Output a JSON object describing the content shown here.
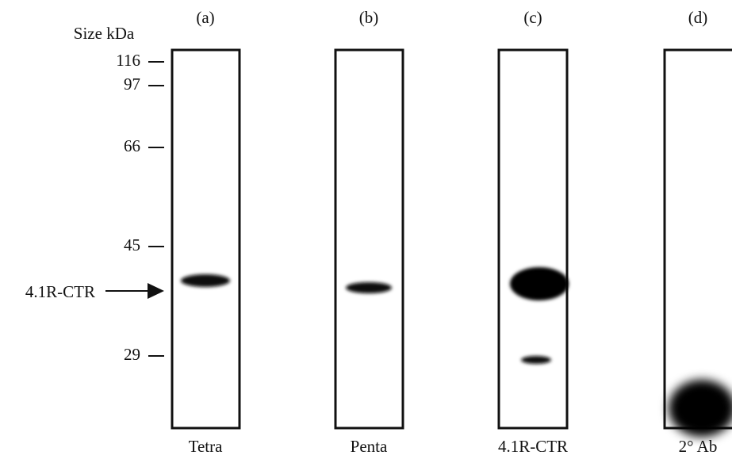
{
  "size_label": "Size kDa",
  "markers": [
    "116",
    "97",
    "66",
    "45",
    "29"
  ],
  "arrow_label": "4.1R-CTR",
  "lanes": [
    {
      "letter": "(a)",
      "name": "Tetra"
    },
    {
      "letter": "(b)",
      "name": "Penta"
    },
    {
      "letter": "(c)",
      "name": "4.1R-CTR"
    },
    {
      "letter": "(d)",
      "name": "2° Ab"
    }
  ]
}
